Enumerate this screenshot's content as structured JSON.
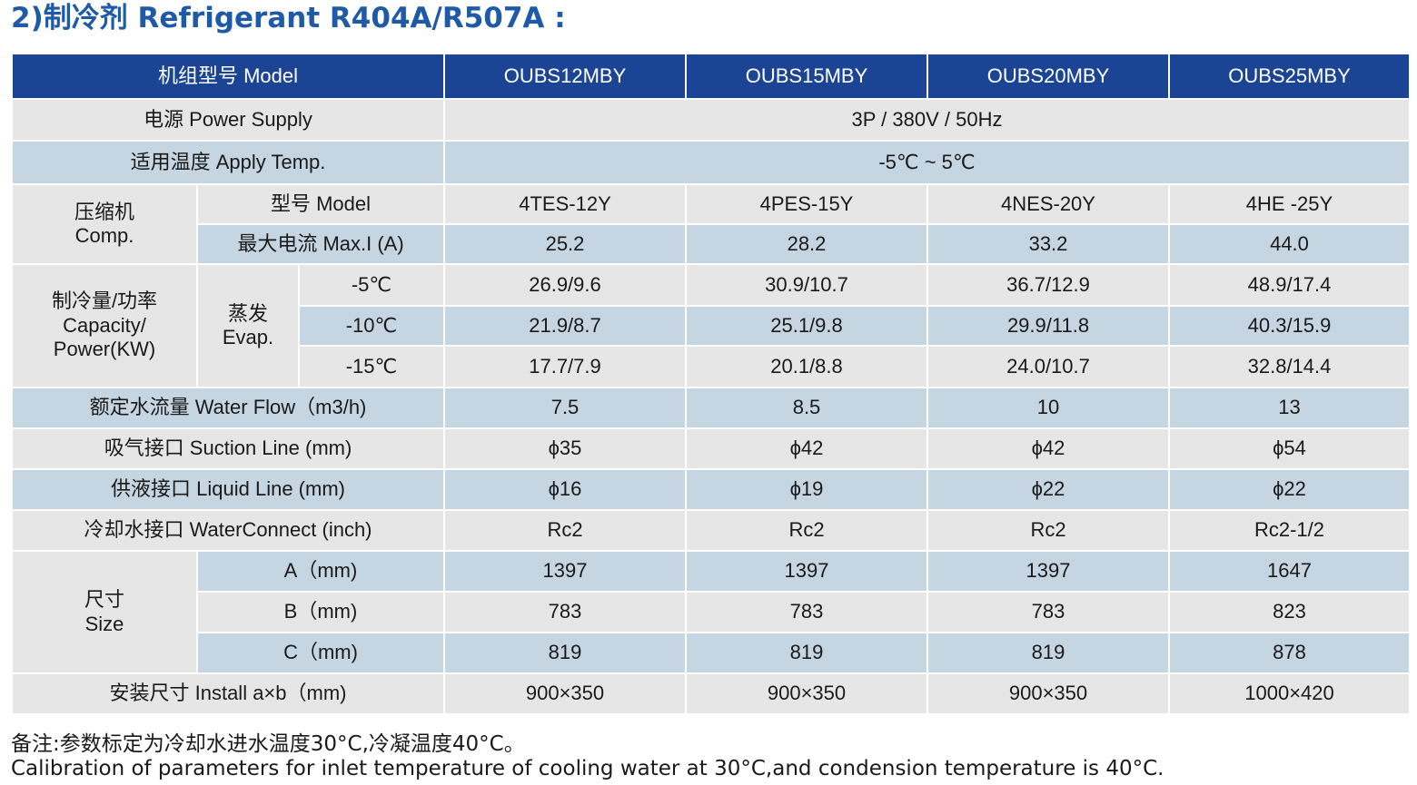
{
  "heading": "2)制冷剂 Refrigerant R404A/R507A :",
  "table": {
    "header": {
      "label": "机组型号 Model",
      "models": [
        "OUBS12MBY",
        "OUBS15MBY",
        "OUBS20MBY",
        "OUBS25MBY"
      ]
    },
    "power_supply": {
      "label": "电源 Power Supply",
      "value": "3P / 380V / 50Hz"
    },
    "apply_temp": {
      "label": "适用温度 Apply Temp.",
      "value": "-5℃ ~ 5℃"
    },
    "compressor": {
      "label_cn": "压缩机",
      "label_en": "Comp.",
      "model": {
        "label": "型号 Model",
        "values": [
          "4TES-12Y",
          "4PES-15Y",
          "4NES-20Y",
          "4HE -25Y"
        ]
      },
      "max_current": {
        "label": "最大电流 Max.I (A)",
        "values": [
          "25.2",
          "28.2",
          "33.2",
          "44.0"
        ]
      }
    },
    "capacity": {
      "label_1": "制冷量/功率",
      "label_2": "Capacity/",
      "label_3": "Power(KW)",
      "evap_cn": "蒸发",
      "evap_en": "Evap.",
      "rows": [
        {
          "temp": "-5℃",
          "values": [
            "26.9/9.6",
            "30.9/10.7",
            "36.7/12.9",
            "48.9/17.4"
          ]
        },
        {
          "temp": "-10℃",
          "values": [
            "21.9/8.7",
            "25.1/9.8",
            "29.9/11.8",
            "40.3/15.9"
          ]
        },
        {
          "temp": "-15℃",
          "values": [
            "17.7/7.9",
            "20.1/8.8",
            "24.0/10.7",
            "32.8/14.4"
          ]
        }
      ]
    },
    "water_flow": {
      "label": "额定水流量 Water Flow（m3/h)",
      "values": [
        "7.5",
        "8.5",
        "10",
        "13"
      ]
    },
    "suction": {
      "label": "吸气接口 Suction Line (mm)",
      "values": [
        "ϕ35",
        "ϕ42",
        "ϕ42",
        "ϕ54"
      ]
    },
    "liquid": {
      "label": "供液接口 Liquid Line (mm)",
      "values": [
        "ϕ16",
        "ϕ19",
        "ϕ22",
        "ϕ22"
      ]
    },
    "water_connect": {
      "label": "冷却水接口 WaterConnect (inch)",
      "values": [
        "Rc2",
        "Rc2",
        "Rc2",
        "Rc2-1/2"
      ]
    },
    "size": {
      "label_cn": "尺寸",
      "label_en": "Size",
      "rows": [
        {
          "label": "A（mm)",
          "values": [
            "1397",
            "1397",
            "1397",
            "1647"
          ]
        },
        {
          "label": "B（mm)",
          "values": [
            "783",
            "783",
            "783",
            "823"
          ]
        },
        {
          "label": "C（mm)",
          "values": [
            "819",
            "819",
            "819",
            "878"
          ]
        }
      ]
    },
    "install": {
      "label": "安装尺寸 Install a×b（mm)",
      "values": [
        "900×350",
        "900×350",
        "900×350",
        "1000×420"
      ]
    }
  },
  "notes": {
    "cn": "备注:参数标定为冷却水进水温度30°C,冷凝温度40°C。",
    "en": "Calibration of parameters for inlet temperature of cooling water at 30°C,and condension temperature is 40°C."
  }
}
